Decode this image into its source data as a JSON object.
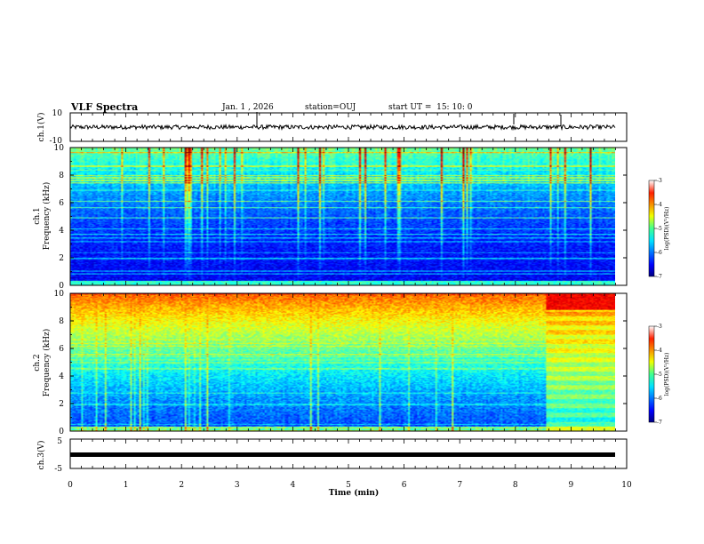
{
  "header": {
    "title": "VLF Spectra",
    "date": "Jan. 1 , 2026",
    "station": "station=OUJ",
    "start_ut": "start UT =  15: 10: 0"
  },
  "chart_data": [
    {
      "type": "line",
      "panel": "ch1-waveform",
      "ylabel": "ch.1(V)",
      "ylim": [
        -10,
        10
      ],
      "y_ticks": [
        "10",
        "-10"
      ],
      "series": [
        {
          "mean": 0,
          "amplitude": 1.5
        }
      ]
    },
    {
      "type": "heatmap",
      "panel": "ch1-spectrogram",
      "ylabel": "ch.1\nFrequency (kHz)",
      "ylim": [
        0,
        10
      ],
      "y_ticks": [
        "0",
        "2",
        "4",
        "6",
        "8",
        "10"
      ],
      "xlim": [
        0,
        9.85
      ],
      "colorbar": {
        "label": "log(PSD)(V²/Hz)",
        "range": [
          -7,
          -3
        ],
        "ticks": [
          "-3",
          "-4",
          "-5",
          "-6",
          "-7"
        ]
      }
    },
    {
      "type": "heatmap",
      "panel": "ch2-spectrogram",
      "ylabel": "ch.2\nFrequency (kHz)",
      "ylim": [
        0,
        10
      ],
      "y_ticks": [
        "0",
        "2",
        "4",
        "6",
        "8",
        "10"
      ],
      "xlim": [
        0,
        9.85
      ],
      "colorbar": {
        "label": "log(PSD)(V²/Hz)",
        "range": [
          -7,
          -3
        ],
        "ticks": [
          "-3",
          "-4",
          "-5",
          "-6",
          "-7"
        ]
      }
    },
    {
      "type": "line",
      "panel": "ch3-waveform",
      "ylabel": "ch.3(V)",
      "ylim": [
        -5,
        5
      ],
      "y_ticks": [
        "5",
        "-5"
      ],
      "series": [
        {
          "mean": -0.3,
          "amplitude": 0.2
        }
      ]
    }
  ],
  "x_axis": {
    "label": "Time (min)",
    "range": [
      0,
      10
    ],
    "ticks": [
      "0",
      "1",
      "2",
      "3",
      "4",
      "5",
      "6",
      "7",
      "8",
      "9",
      "10"
    ]
  },
  "colors": {
    "axis": "#000000",
    "background": "#ffffff"
  }
}
